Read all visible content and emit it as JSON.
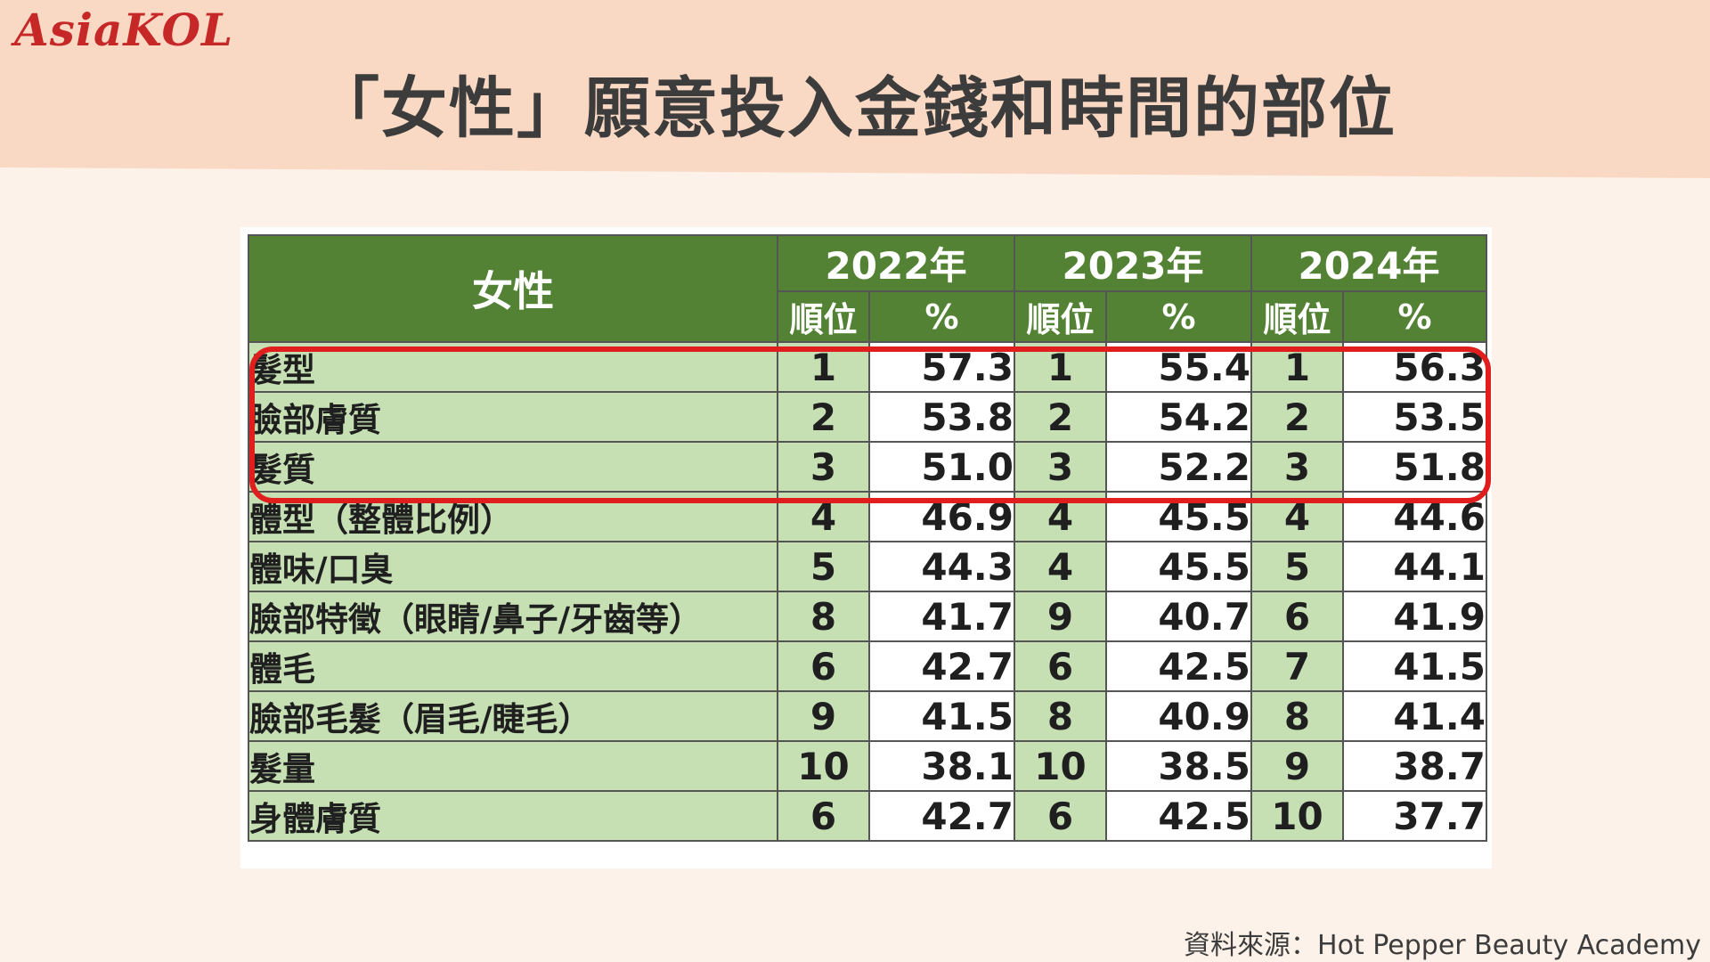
{
  "brand": {
    "logo_text": "AsiaKOL"
  },
  "title": "「女性」願意投入金錢和時間的部位",
  "table": {
    "corner_header": "女性",
    "years": [
      "2022年",
      "2023年",
      "2024年"
    ],
    "sub_headers": [
      "順位",
      "%"
    ],
    "rows": [
      {
        "label": "髮型",
        "r2022": "1",
        "p2022": "57.3",
        "r2023": "1",
        "p2023": "55.4",
        "r2024": "1",
        "p2024": "56.3"
      },
      {
        "label": "臉部膚質",
        "r2022": "2",
        "p2022": "53.8",
        "r2023": "2",
        "p2023": "54.2",
        "r2024": "2",
        "p2024": "53.5"
      },
      {
        "label": "髮質",
        "r2022": "3",
        "p2022": "51.0",
        "r2023": "3",
        "p2023": "52.2",
        "r2024": "3",
        "p2024": "51.8"
      },
      {
        "label": "體型（整體比例）",
        "r2022": "4",
        "p2022": "46.9",
        "r2023": "4",
        "p2023": "45.5",
        "r2024": "4",
        "p2024": "44.6"
      },
      {
        "label": "體味/口臭",
        "r2022": "5",
        "p2022": "44.3",
        "r2023": "4",
        "p2023": "45.5",
        "r2024": "5",
        "p2024": "44.1"
      },
      {
        "label": "臉部特徵（眼睛/鼻子/牙齒等）",
        "r2022": "8",
        "p2022": "41.7",
        "r2023": "9",
        "p2023": "40.7",
        "r2024": "6",
        "p2024": "41.9"
      },
      {
        "label": "體毛",
        "r2022": "6",
        "p2022": "42.7",
        "r2023": "6",
        "p2023": "42.5",
        "r2024": "7",
        "p2024": "41.5"
      },
      {
        "label": "臉部毛髮（眉毛/睫毛）",
        "r2022": "9",
        "p2022": "41.5",
        "r2023": "8",
        "p2023": "40.9",
        "r2024": "8",
        "p2024": "41.4"
      },
      {
        "label": "髮量",
        "r2022": "10",
        "p2022": "38.1",
        "r2023": "10",
        "p2023": "38.5",
        "r2024": "9",
        "p2024": "38.7"
      },
      {
        "label": "身體膚質",
        "r2022": "6",
        "p2022": "42.7",
        "r2023": "6",
        "p2023": "42.5",
        "r2024": "10",
        "p2024": "37.7"
      }
    ]
  },
  "source": "資料來源：Hot Pepper Beauty Academy",
  "colors": {
    "header_green": "#548235",
    "row_green": "#c6e0b4",
    "highlight_red": "#e01e1e",
    "banner": "#fad9c4",
    "background": "#fdf2e9"
  }
}
